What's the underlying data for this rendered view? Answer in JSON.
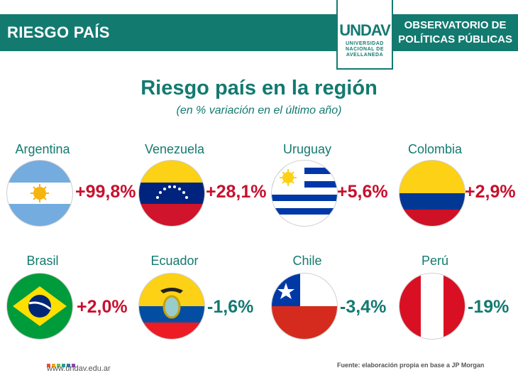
{
  "header": {
    "title": "RIESGO PAÍS",
    "org_line1": "OBSERVATORIO DE",
    "org_line2": "POLÍTICAS PÚBLICAS",
    "logo_text": "UNDAV",
    "logo_sub1": "UNIVERSIDAD",
    "logo_sub2": "NACIONAL DE",
    "logo_sub3": "AVELLANEDA"
  },
  "colors": {
    "brand": "#137a70",
    "positive": "#c8102e",
    "negative": "#137a70"
  },
  "chart_data": {
    "type": "table",
    "title": "Riesgo país en la región",
    "subtitle": "(en % variación en el último año)",
    "items": [
      {
        "country": "Argentina",
        "value": 99.8,
        "label": "+99,8%",
        "flag": "argentina-flag-icon"
      },
      {
        "country": "Venezuela",
        "value": 28.1,
        "label": "+28,1%",
        "flag": "venezuela-flag-icon"
      },
      {
        "country": "Uruguay",
        "value": 5.6,
        "label": "+5,6%",
        "flag": "uruguay-flag-icon"
      },
      {
        "country": "Colombia",
        "value": 2.9,
        "label": "+2,9%",
        "flag": "colombia-flag-icon"
      },
      {
        "country": "Brasil",
        "value": 2.0,
        "label": "+2,0%",
        "flag": "brazil-flag-icon"
      },
      {
        "country": "Ecuador",
        "value": -1.6,
        "label": "-1,6%",
        "flag": "ecuador-flag-icon"
      },
      {
        "country": "Chile",
        "value": -3.4,
        "label": "-3,4%",
        "flag": "chile-flag-icon"
      },
      {
        "country": "Perú",
        "value": -19,
        "label": "-19%",
        "flag": "peru-flag-icon"
      }
    ]
  },
  "footer": {
    "url": "www.undav.edu.ar",
    "source": "Fuente: elaboración propia en base a JP Morgan"
  }
}
